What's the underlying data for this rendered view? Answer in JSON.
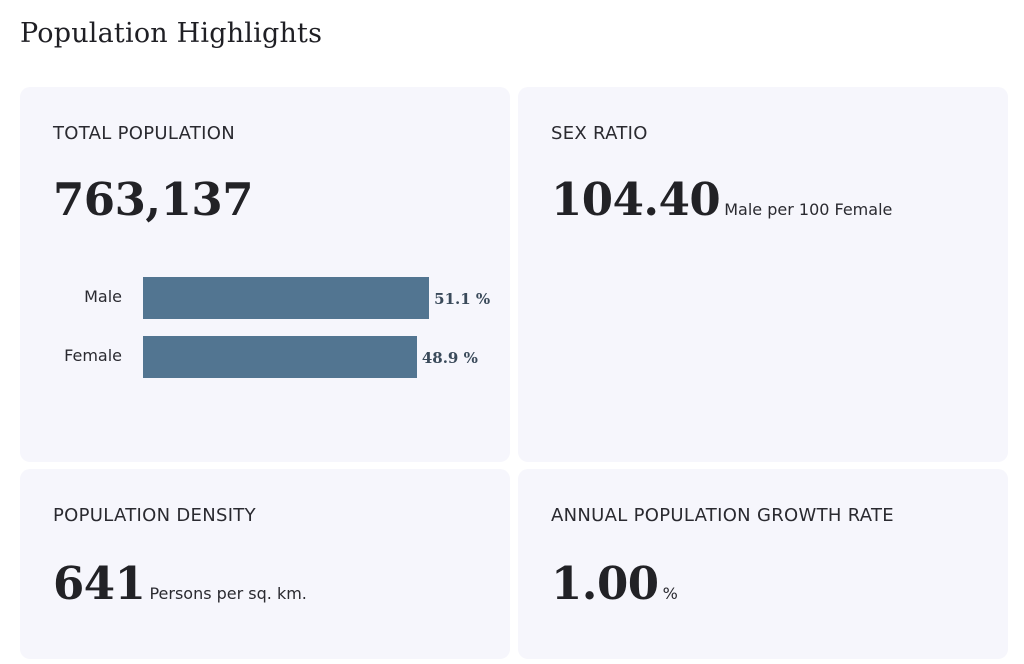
{
  "page": {
    "title": "Population Highlights"
  },
  "colors": {
    "card_background": "#f6f6fc",
    "bar": "#527591"
  },
  "cards": {
    "total_population": {
      "label": "TOTAL POPULATION",
      "value": "763,137",
      "breakdown": [
        {
          "category": "Male",
          "percent": 51.1,
          "value_label": "51.1 %"
        },
        {
          "category": "Female",
          "percent": 48.9,
          "value_label": "48.9 %"
        }
      ]
    },
    "sex_ratio": {
      "label": "SEX RATIO",
      "value": "104.40",
      "unit": "Male per 100 Female"
    },
    "population_density": {
      "label": "POPULATION DENSITY",
      "value": "641",
      "unit": "Persons per sq. km."
    },
    "growth_rate": {
      "label": "ANNUAL POPULATION GROWTH RATE",
      "value": "1.00",
      "unit": "%"
    }
  }
}
